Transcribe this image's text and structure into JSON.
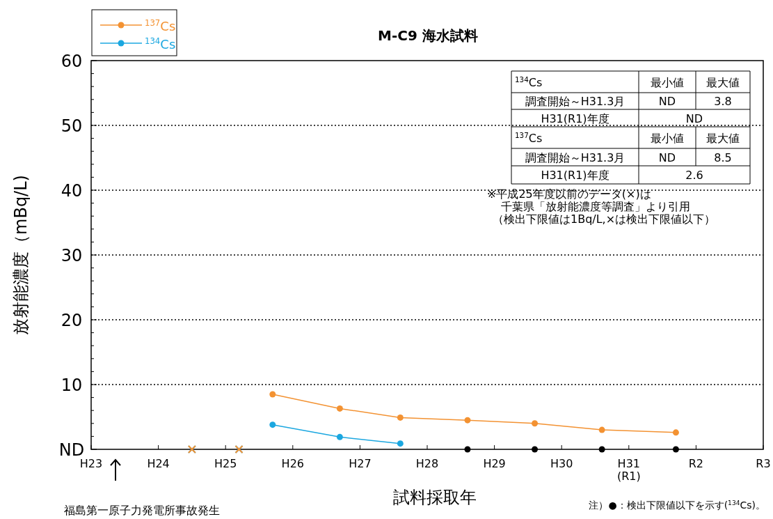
{
  "chart_data": {
    "type": "line",
    "title": "M-C9 海水試料",
    "xlabel": "試料採取年",
    "ylabel": "放射能濃度（mBq/L)",
    "categories": [
      "H23",
      null,
      null,
      null,
      null,
      null,
      null,
      null,
      null,
      null,
      "H24",
      null,
      null,
      null,
      null,
      null,
      null,
      null,
      null,
      null,
      "H25",
      null,
      null,
      null,
      null,
      null,
      null,
      null,
      null,
      null,
      "H26",
      null,
      null,
      null,
      null,
      null,
      null,
      null,
      null,
      null,
      "H27",
      null,
      null,
      null,
      null,
      null,
      null,
      null,
      null,
      null,
      "H28",
      null,
      null,
      null,
      null,
      null,
      null,
      null,
      null,
      null,
      "H29",
      null,
      null,
      null,
      null,
      null,
      null,
      null,
      null,
      null,
      "H30",
      null,
      null,
      null,
      null,
      null,
      null,
      null,
      null,
      null,
      "H31\n(R1)",
      null,
      null,
      null,
      null,
      null,
      null,
      null,
      null,
      null,
      "R2",
      null,
      null,
      null,
      null,
      null,
      null,
      null,
      null,
      null,
      "R3"
    ],
    "ylim": [
      0,
      60
    ],
    "yticks": [
      {
        "value": 0,
        "label": "ND"
      },
      {
        "value": 2,
        "label": null
      },
      {
        "value": 4,
        "label": null
      },
      {
        "value": 6,
        "label": null
      },
      {
        "value": 8,
        "label": null
      },
      10,
      {
        "value": 12,
        "label": null
      },
      {
        "value": 14,
        "label": null
      },
      {
        "value": 16,
        "label": null
      },
      {
        "value": 18,
        "label": null
      },
      20,
      {
        "value": 22,
        "label": null
      },
      {
        "value": 24,
        "label": null
      },
      {
        "value": 26,
        "label": null
      },
      {
        "value": 28,
        "label": null
      },
      30,
      {
        "value": 32,
        "label": null
      },
      {
        "value": 34,
        "label": null
      },
      {
        "value": 36,
        "label": null
      },
      {
        "value": 38,
        "label": null
      },
      40,
      {
        "value": 42,
        "label": null
      },
      {
        "value": 44,
        "label": null
      },
      {
        "value": 46,
        "label": null
      },
      {
        "value": 48,
        "label": null
      },
      50,
      {
        "value": 52,
        "label": null
      },
      {
        "value": 54,
        "label": null
      },
      {
        "value": 56,
        "label": null
      },
      {
        "value": 58,
        "label": null
      },
      60
    ],
    "grid": "y",
    "legend": "top left",
    "marker": "circle",
    "line_style": "solid",
    "series": [
      {
        "name": "$^{137}$Cs",
        "color": "#f39232",
        "values": [
          null,
          null,
          null,
          null,
          null,
          null,
          null,
          null,
          null,
          null,
          null,
          null,
          null,
          null,
          null,
          null,
          null,
          null,
          null,
          null,
          null,
          null,
          null,
          null,
          null,
          null,
          null,
          8.5,
          null,
          null,
          null,
          null,
          null,
          null,
          null,
          null,
          null,
          6.3,
          null,
          null,
          null,
          null,
          null,
          null,
          null,
          null,
          4.9,
          null,
          null,
          null,
          null,
          null,
          null,
          null,
          null,
          null,
          4.5,
          null,
          null,
          null,
          null,
          null,
          null,
          null,
          null,
          null,
          4.0,
          null,
          null,
          null,
          null,
          null,
          null,
          null,
          null,
          null,
          3.0,
          null,
          null,
          null,
          null,
          null,
          null,
          null,
          null,
          null,
          null,
          2.6,
          null,
          null,
          null,
          null,
          null,
          null,
          null,
          null,
          null,
          null,
          null,
          null,
          null
        ]
      },
      {
        "name": "$^{134}$Cs",
        "color": "#1ba7e0",
        "values": [
          null,
          null,
          null,
          null,
          null,
          null,
          null,
          null,
          null,
          null,
          null,
          null,
          null,
          null,
          null,
          null,
          null,
          null,
          null,
          null,
          null,
          null,
          null,
          null,
          null,
          null,
          null,
          3.8,
          null,
          null,
          null,
          null,
          null,
          null,
          null,
          null,
          null,
          1.9,
          null,
          null,
          null,
          null,
          null,
          null,
          null,
          null,
          0.9,
          null,
          null,
          null,
          null,
          null,
          null,
          null,
          null,
          null,
          null,
          null,
          null,
          null,
          null,
          null,
          null,
          null,
          null,
          null,
          null,
          null,
          null,
          null,
          null,
          null,
          null,
          null,
          null,
          null,
          null,
          null,
          null,
          null,
          null,
          null,
          null,
          null,
          null,
          null,
          null,
          null,
          null,
          null,
          null,
          null,
          null,
          null,
          null,
          null,
          null,
          null,
          null,
          null,
          null
        ]
      },
      {
        "type": "scatter",
        "marker": "circle",
        "color": "#000000",
        "values": [
          null,
          null,
          null,
          null,
          null,
          null,
          null,
          null,
          null,
          null,
          null,
          null,
          null,
          null,
          null,
          null,
          null,
          null,
          null,
          null,
          null,
          null,
          null,
          null,
          null,
          null,
          null,
          null,
          null,
          null,
          null,
          null,
          null,
          null,
          null,
          null,
          null,
          null,
          null,
          null,
          null,
          null,
          null,
          null,
          null,
          null,
          null,
          null,
          null,
          null,
          null,
          null,
          null,
          null,
          null,
          null,
          0,
          null,
          null,
          null,
          null,
          null,
          null,
          null,
          null,
          null,
          0,
          null,
          null,
          null,
          null,
          null,
          null,
          null,
          null,
          null,
          0,
          null,
          null,
          null,
          null,
          null,
          null,
          null,
          null,
          null,
          null,
          0,
          null,
          null,
          null,
          null,
          null,
          null,
          null,
          null,
          null,
          null,
          null,
          null,
          null
        ]
      },
      {
        "type": "scatter",
        "marker": "cross",
        "color": "#1ba7e0",
        "values": [
          null,
          null,
          null,
          null,
          null,
          null,
          null,
          null,
          null,
          null,
          null,
          null,
          null,
          null,
          null,
          0,
          null,
          null,
          null,
          null,
          null,
          null,
          0,
          null,
          null,
          null,
          null,
          null,
          null,
          null,
          null,
          null,
          null,
          null,
          null,
          null,
          null,
          null,
          null,
          null,
          null,
          null,
          null,
          null,
          null,
          null,
          null,
          null,
          null,
          null,
          null,
          null,
          null,
          null,
          null,
          null,
          null,
          null,
          null,
          null,
          null,
          null,
          null,
          null,
          null,
          null,
          null,
          null,
          null,
          null,
          null,
          null,
          null,
          null,
          null,
          null,
          null,
          null,
          null,
          null,
          null,
          null,
          null,
          null,
          null,
          null,
          null,
          null,
          null,
          null,
          null,
          null,
          null,
          null,
          null,
          null,
          null,
          null,
          null,
          null,
          null
        ]
      },
      {
        "type": "scatter",
        "marker": "cross",
        "color": "#f39232",
        "values": [
          null,
          null,
          null,
          null,
          null,
          null,
          null,
          null,
          null,
          null,
          null,
          null,
          null,
          null,
          null,
          0,
          null,
          null,
          null,
          null,
          null,
          null,
          0,
          null,
          null,
          null,
          null,
          null,
          null,
          null,
          null,
          null,
          null,
          null,
          null,
          null,
          null,
          null,
          null,
          null,
          null,
          null,
          null,
          null,
          null,
          null,
          null,
          null,
          null,
          null,
          null,
          null,
          null,
          null,
          null,
          null,
          null,
          null,
          null,
          null,
          null,
          null,
          null,
          null,
          null,
          null,
          null,
          null,
          null,
          null,
          null,
          null,
          null,
          null,
          null,
          null,
          null,
          null,
          null,
          null,
          null,
          null,
          null,
          null,
          null,
          null,
          null,
          null,
          null,
          null,
          null,
          null,
          null,
          null,
          null,
          null,
          null,
          null,
          null,
          null,
          null
        ]
      }
    ],
    "annotations": [
      "$^{134}$Cs",
      "最小値",
      "最大値",
      "調査開始～H31.3月",
      "ND",
      "3.8",
      "H31(R1)年度",
      "ND",
      "$^{137}$Cs",
      "最小値",
      "最大値",
      "調査開始～H31.3月",
      "ND",
      "8.5",
      "H31(R1)年度",
      "2.6",
      "※平成25年度以前のデータ(×)は",
      "千葉県「放射能濃度等調査」より引用",
      "（検出下限値は1Bq/L,×は検出下限値以下）",
      "福島第一原子力発電所事故発生",
      "注）●：検出下限値以下を示す($^{134}$Cs)。"
    ]
  }
}
